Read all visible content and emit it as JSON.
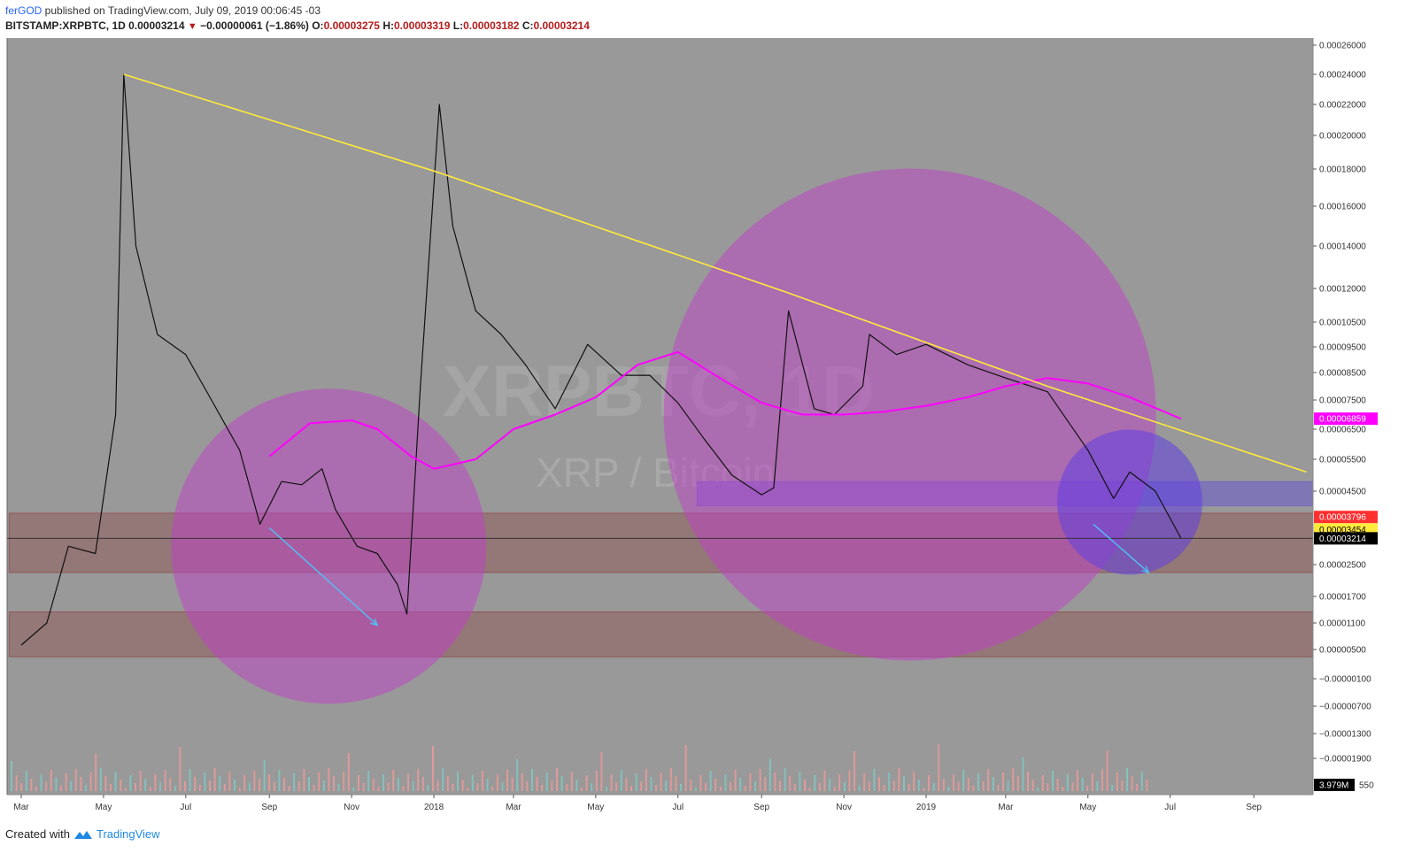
{
  "header": {
    "author": "ferGOD",
    "published": " published on TradingView.com, July 09, 2019 00:06:45 -03",
    "symbol": "BITSTAMP:XRPBTC, 1D",
    "last": "0.00003214",
    "change": "−0.00000061 (−1.86%)",
    "o_label": "O:",
    "o_value": "0.00003275",
    "h_label": "H:",
    "h_value": "0.00003319",
    "l_label": "L:",
    "l_value": "0.00003182",
    "c_label": "C:",
    "c_value": "0.00003214"
  },
  "footer": {
    "created_with": "Created with",
    "brand": "TradingView"
  },
  "watermark": {
    "symbol": "XRPBTC, 1D",
    "description": "XRP / Bitcoin"
  },
  "colors": {
    "background": "#999999",
    "trendline": "#ffeb3b",
    "ma_slow": "#ff00ff",
    "circle_fill": "#c040c8",
    "zone_fill": "#8b3a3a",
    "blue_zone": "#6a5acd",
    "arrow": "#4fc3f7",
    "price_line": "#333333"
  },
  "chart_data": {
    "type": "line",
    "symbol": "BITSTAMP:XRPBTC",
    "interval": "1D",
    "y_scale": "linear",
    "x_ticks": [
      "Mar",
      "May",
      "Jul",
      "Sep",
      "Nov",
      "2018",
      "Mar",
      "May",
      "Jul",
      "Sep",
      "Nov",
      "2019",
      "Mar",
      "May",
      "Jul",
      "Sep"
    ],
    "y_ticks": [
      "0.00026000",
      "0.00024000",
      "0.00022000",
      "0.00020000",
      "0.00018000",
      "0.00016000",
      "0.00014000",
      "0.00012000",
      "0.00010500",
      "0.00009500",
      "0.00008500",
      "0.00007500",
      "0.00006500",
      "0.00005500",
      "0.00004500",
      "0.00002500",
      "0.00001700",
      "0.00001100",
      "0.00000500",
      "−0.00000100",
      "−0.00000700",
      "−0.00001300",
      "−0.00001900"
    ],
    "price_tags": [
      {
        "value": "0.00006859",
        "role": "ma_slow",
        "color": "#ff00ff",
        "text_color": "#ffffff"
      },
      {
        "value": "0.00003796",
        "role": "ma_fast",
        "color": "#ff3030",
        "text_color": "#ffffff"
      },
      {
        "value": "0.00003454",
        "role": "ma_mid",
        "color": "#ffeb3b",
        "text_color": "#000000"
      },
      {
        "value": "0.00003214",
        "role": "last_price",
        "color": "#000000",
        "text_color": "#ffffff"
      }
    ],
    "volume_tag": {
      "value": "3.979M",
      "suffix": "550"
    },
    "price_series": [
      {
        "date": "2017-03-01",
        "close": 6e-06
      },
      {
        "date": "2017-03-20",
        "close": 1.1e-05
      },
      {
        "date": "2017-04-05",
        "close": 3e-05
      },
      {
        "date": "2017-04-25",
        "close": 2.8e-05
      },
      {
        "date": "2017-05-10",
        "close": 7e-05
      },
      {
        "date": "2017-05-16",
        "close": 0.00024
      },
      {
        "date": "2017-05-25",
        "close": 0.00014
      },
      {
        "date": "2017-06-10",
        "close": 0.0001
      },
      {
        "date": "2017-07-01",
        "close": 9.2e-05
      },
      {
        "date": "2017-07-20",
        "close": 7.5e-05
      },
      {
        "date": "2017-08-10",
        "close": 5.8e-05
      },
      {
        "date": "2017-08-25",
        "close": 3.6e-05
      },
      {
        "date": "2017-09-10",
        "close": 4.8e-05
      },
      {
        "date": "2017-09-25",
        "close": 4.7e-05
      },
      {
        "date": "2017-10-10",
        "close": 5.2e-05
      },
      {
        "date": "2017-10-20",
        "close": 4e-05
      },
      {
        "date": "2017-11-05",
        "close": 3e-05
      },
      {
        "date": "2017-11-20",
        "close": 2.8e-05
      },
      {
        "date": "2017-12-05",
        "close": 2e-05
      },
      {
        "date": "2017-12-12",
        "close": 1.3e-05
      },
      {
        "date": "2017-12-22",
        "close": 8e-05
      },
      {
        "date": "2018-01-05",
        "close": 0.00022
      },
      {
        "date": "2018-01-15",
        "close": 0.00015
      },
      {
        "date": "2018-02-01",
        "close": 0.00011
      },
      {
        "date": "2018-02-20",
        "close": 0.0001
      },
      {
        "date": "2018-03-10",
        "close": 8.8e-05
      },
      {
        "date": "2018-04-01",
        "close": 7.2e-05
      },
      {
        "date": "2018-04-25",
        "close": 9.6e-05
      },
      {
        "date": "2018-05-20",
        "close": 8.4e-05
      },
      {
        "date": "2018-06-10",
        "close": 8.4e-05
      },
      {
        "date": "2018-07-01",
        "close": 7.4e-05
      },
      {
        "date": "2018-07-20",
        "close": 6.2e-05
      },
      {
        "date": "2018-08-10",
        "close": 5e-05
      },
      {
        "date": "2018-09-01",
        "close": 4.4e-05
      },
      {
        "date": "2018-09-10",
        "close": 4.6e-05
      },
      {
        "date": "2018-09-21",
        "close": 0.00011
      },
      {
        "date": "2018-10-10",
        "close": 7.2e-05
      },
      {
        "date": "2018-10-25",
        "close": 7e-05
      },
      {
        "date": "2018-11-15",
        "close": 8e-05
      },
      {
        "date": "2018-11-20",
        "close": 0.0001
      },
      {
        "date": "2018-12-10",
        "close": 9.2e-05
      },
      {
        "date": "2019-01-01",
        "close": 9.6e-05
      },
      {
        "date": "2019-02-01",
        "close": 8.8e-05
      },
      {
        "date": "2019-03-01",
        "close": 8.3e-05
      },
      {
        "date": "2019-04-01",
        "close": 7.8e-05
      },
      {
        "date": "2019-05-01",
        "close": 5.8e-05
      },
      {
        "date": "2019-05-20",
        "close": 4.3e-05
      },
      {
        "date": "2019-06-01",
        "close": 5.1e-05
      },
      {
        "date": "2019-06-20",
        "close": 4.5e-05
      },
      {
        "date": "2019-07-09",
        "close": 3.214e-05
      }
    ],
    "ma_slow_series": [
      {
        "date": "2017-09-01",
        "value": 5.6e-05
      },
      {
        "date": "2017-10-01",
        "value": 6.7e-05
      },
      {
        "date": "2017-11-01",
        "value": 6.8e-05
      },
      {
        "date": "2017-11-20",
        "value": 6.5e-05
      },
      {
        "date": "2017-12-15",
        "value": 5.6e-05
      },
      {
        "date": "2018-01-01",
        "value": 5.2e-05
      },
      {
        "date": "2018-02-01",
        "value": 5.5e-05
      },
      {
        "date": "2018-03-01",
        "value": 6.5e-05
      },
      {
        "date": "2018-04-01",
        "value": 7e-05
      },
      {
        "date": "2018-05-01",
        "value": 7.6e-05
      },
      {
        "date": "2018-06-01",
        "value": 8.8e-05
      },
      {
        "date": "2018-07-01",
        "value": 9.3e-05
      },
      {
        "date": "2018-08-01",
        "value": 8.3e-05
      },
      {
        "date": "2018-09-01",
        "value": 7.4e-05
      },
      {
        "date": "2018-10-01",
        "value": 7e-05
      },
      {
        "date": "2018-11-01",
        "value": 7e-05
      },
      {
        "date": "2018-12-01",
        "value": 7.1e-05
      },
      {
        "date": "2019-01-01",
        "value": 7.3e-05
      },
      {
        "date": "2019-02-01",
        "value": 7.6e-05
      },
      {
        "date": "2019-03-01",
        "value": 8e-05
      },
      {
        "date": "2019-04-01",
        "value": 8.3e-05
      },
      {
        "date": "2019-05-01",
        "value": 8.1e-05
      },
      {
        "date": "2019-06-01",
        "value": 7.6e-05
      },
      {
        "date": "2019-07-09",
        "value": 6.859e-05
      }
    ],
    "trendline": [
      {
        "date": "2017-05-16",
        "value": 0.00024
      },
      {
        "date": "2018-01-05",
        "value": 0.000178
      },
      {
        "date": "2018-09-21",
        "value": 0.000118
      },
      {
        "date": "2019-04-01",
        "value": 8e-05
      },
      {
        "date": "2019-10-10",
        "value": 5.1e-05
      }
    ],
    "zones": [
      {
        "from_date": "2017-02-20",
        "to_date": "2019-10-20",
        "y_top": 3.9e-05,
        "y_bottom": 2.3e-05
      },
      {
        "from_date": "2017-02-20",
        "to_date": "2019-10-20",
        "y_top": 1.35e-05,
        "y_bottom": 3.5e-06
      },
      {
        "from_date": "2018-07-15",
        "to_date": "2019-10-20",
        "y_top": 4.8e-05,
        "y_bottom": 4.1e-05
      }
    ],
    "circles": [
      {
        "center_date": "2017-10-15",
        "center_value": 3e-05,
        "fill": "#c040c8"
      },
      {
        "center_date": "2018-12-20",
        "center_value": 7e-05,
        "fill": "#c040c8"
      },
      {
        "center_date": "2019-06-01",
        "center_value": 4.2e-05,
        "fill": "#6040e0"
      }
    ],
    "arrows": [
      {
        "from_date": "2017-09-01",
        "from_value": 3.5e-05,
        "to_date": "2017-11-20",
        "to_value": 1.05e-05
      },
      {
        "from_date": "2019-05-05",
        "from_value": 3.6e-05,
        "to_date": "2019-06-15",
        "to_value": 2.3e-05
      }
    ]
  }
}
